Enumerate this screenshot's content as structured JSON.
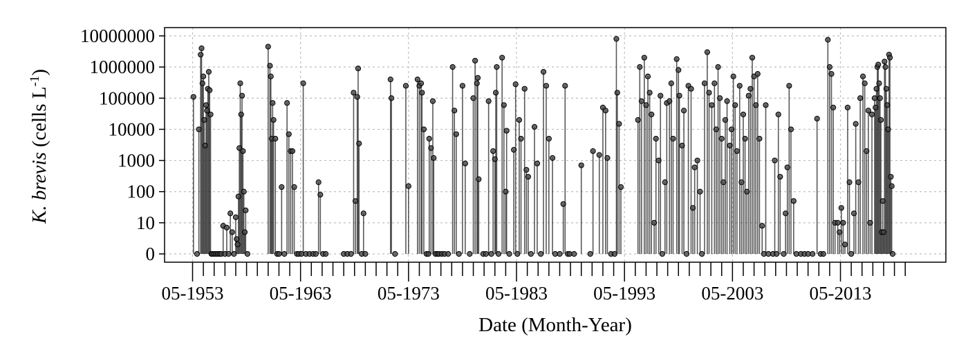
{
  "chart_data": {
    "type": "scatter",
    "style": "lollipop stems from baseline",
    "xlabel": "Date (Month-Year)",
    "ylabel": {
      "species": "K. brevis",
      "unit_prefix": " (cells L",
      "unit_exp": "-1",
      "unit_suffix": ")"
    },
    "x_ticks": [
      "05-1953",
      "05-1963",
      "05-1973",
      "05-1983",
      "05-1993",
      "05-2003",
      "05-2013"
    ],
    "y_ticks": [
      "0",
      "10",
      "100",
      "1000",
      "10000",
      "100000",
      "1000000",
      "10000000"
    ],
    "y_scale": "log10 with 0 plotted one decade below 10",
    "ylim": [
      0,
      10000000
    ],
    "xlim": [
      "1953-01",
      "2020-06"
    ],
    "grid": true,
    "colors": {
      "points": "#444444",
      "stems": "#222222",
      "grid": "#bdbdbd"
    },
    "points": [
      [
        "1953-06",
        110000
      ],
      [
        "1953-10",
        0
      ],
      [
        "1953-12",
        10000
      ],
      [
        "1954-02",
        2500000
      ],
      [
        "1954-03",
        4000000
      ],
      [
        "1954-04",
        300000
      ],
      [
        "1954-05",
        500000
      ],
      [
        "1954-06",
        20000
      ],
      [
        "1954-07",
        3000
      ],
      [
        "1954-08",
        60000
      ],
      [
        "1954-09",
        40000
      ],
      [
        "1954-10",
        200000
      ],
      [
        "1954-11",
        700000
      ],
      [
        "1954-12",
        180000
      ],
      [
        "1955-01",
        30000
      ],
      [
        "1955-02",
        0
      ],
      [
        "1955-03",
        0
      ],
      [
        "1955-05",
        0
      ],
      [
        "1955-07",
        0
      ],
      [
        "1955-09",
        0
      ],
      [
        "1955-11",
        0
      ],
      [
        "1956-01",
        0
      ],
      [
        "1956-03",
        8
      ],
      [
        "1956-05",
        0
      ],
      [
        "1956-07",
        7
      ],
      [
        "1956-09",
        0
      ],
      [
        "1956-11",
        20
      ],
      [
        "1957-01",
        5
      ],
      [
        "1957-03",
        0
      ],
      [
        "1957-05",
        15
      ],
      [
        "1957-06",
        3
      ],
      [
        "1957-07",
        2
      ],
      [
        "1957-08",
        70
      ],
      [
        "1957-09",
        2500
      ],
      [
        "1957-10",
        300000
      ],
      [
        "1957-11",
        30000
      ],
      [
        "1957-12",
        120000
      ],
      [
        "1958-01",
        2000
      ],
      [
        "1958-02",
        100
      ],
      [
        "1958-03",
        5
      ],
      [
        "1958-04",
        25
      ],
      [
        "1958-06",
        0
      ],
      [
        "1960-05",
        4500000
      ],
      [
        "1960-07",
        1100000
      ],
      [
        "1960-08",
        500000
      ],
      [
        "1960-09",
        5000
      ],
      [
        "1960-10",
        70000
      ],
      [
        "1960-11",
        20000
      ],
      [
        "1961-01",
        5000
      ],
      [
        "1961-03",
        0
      ],
      [
        "1961-05",
        0
      ],
      [
        "1961-08",
        140
      ],
      [
        "1961-11",
        0
      ],
      [
        "1962-02",
        70000
      ],
      [
        "1962-04",
        7000
      ],
      [
        "1962-06",
        2000
      ],
      [
        "1962-08",
        2000
      ],
      [
        "1962-10",
        140
      ],
      [
        "1963-01",
        0
      ],
      [
        "1963-03",
        0
      ],
      [
        "1963-06",
        0
      ],
      [
        "1963-08",
        300000
      ],
      [
        "1963-11",
        0
      ],
      [
        "1964-03",
        0
      ],
      [
        "1964-07",
        0
      ],
      [
        "1964-10",
        0
      ],
      [
        "1965-01",
        200
      ],
      [
        "1965-03",
        80
      ],
      [
        "1965-06",
        0
      ],
      [
        "1965-09",
        0
      ],
      [
        "1967-05",
        0
      ],
      [
        "1967-09",
        0
      ],
      [
        "1968-01",
        0
      ],
      [
        "1968-04",
        150000
      ],
      [
        "1968-06",
        50
      ],
      [
        "1968-08",
        110000
      ],
      [
        "1968-09",
        900000
      ],
      [
        "1968-10",
        3500
      ],
      [
        "1969-01",
        0
      ],
      [
        "1969-03",
        20
      ],
      [
        "1969-05",
        0
      ],
      [
        "1971-09",
        400000
      ],
      [
        "1971-10",
        100000
      ],
      [
        "1972-02",
        0
      ],
      [
        "1973-02",
        250000
      ],
      [
        "1973-05",
        150
      ],
      [
        "1974-03",
        400000
      ],
      [
        "1974-05",
        250000
      ],
      [
        "1974-07",
        300000
      ],
      [
        "1974-08",
        150000
      ],
      [
        "1974-10",
        10000
      ],
      [
        "1975-01",
        0
      ],
      [
        "1975-03",
        0
      ],
      [
        "1975-04",
        5000
      ],
      [
        "1975-06",
        2500
      ],
      [
        "1975-08",
        80000
      ],
      [
        "1975-09",
        1200
      ],
      [
        "1975-11",
        0
      ],
      [
        "1976-01",
        0
      ],
      [
        "1976-03",
        0
      ],
      [
        "1976-06",
        0
      ],
      [
        "1976-09",
        0
      ],
      [
        "1977-01",
        0
      ],
      [
        "1977-06",
        1000000
      ],
      [
        "1977-08",
        40000
      ],
      [
        "1977-10",
        7000
      ],
      [
        "1978-01",
        0
      ],
      [
        "1978-05",
        250000
      ],
      [
        "1978-08",
        800
      ],
      [
        "1979-01",
        0
      ],
      [
        "1979-05",
        100000
      ],
      [
        "1979-07",
        1600000
      ],
      [
        "1979-09",
        300000
      ],
      [
        "1979-10",
        450000
      ],
      [
        "1979-11",
        250
      ],
      [
        "1980-04",
        0
      ],
      [
        "1980-07",
        0
      ],
      [
        "1980-10",
        80000
      ],
      [
        "1981-01",
        0
      ],
      [
        "1981-03",
        2000
      ],
      [
        "1981-05",
        1100
      ],
      [
        "1981-06",
        150000
      ],
      [
        "1981-07",
        1000000
      ],
      [
        "1981-09",
        0
      ],
      [
        "1982-01",
        2000000
      ],
      [
        "1982-03",
        60000
      ],
      [
        "1982-05",
        100
      ],
      [
        "1982-06",
        9000
      ],
      [
        "1982-09",
        0
      ],
      [
        "1983-02",
        2200
      ],
      [
        "1983-04",
        280000
      ],
      [
        "1983-06",
        0
      ],
      [
        "1983-08",
        20000
      ],
      [
        "1983-10",
        5000
      ],
      [
        "1984-02",
        200000
      ],
      [
        "1984-04",
        500
      ],
      [
        "1984-06",
        300
      ],
      [
        "1984-09",
        0
      ],
      [
        "1985-01",
        12000
      ],
      [
        "1985-04",
        800
      ],
      [
        "1985-08",
        0
      ],
      [
        "1985-11",
        700000
      ],
      [
        "1986-02",
        250000
      ],
      [
        "1986-05",
        5000
      ],
      [
        "1986-09",
        1200
      ],
      [
        "1986-12",
        0
      ],
      [
        "1987-05",
        0
      ],
      [
        "1987-09",
        40
      ],
      [
        "1987-11",
        250000
      ],
      [
        "1988-02",
        0
      ],
      [
        "1988-04",
        0
      ],
      [
        "1988-09",
        0
      ],
      [
        "1989-05",
        700
      ],
      [
        "1990-03",
        0
      ],
      [
        "1990-06",
        2000
      ],
      [
        "1991-01",
        1500
      ],
      [
        "1991-05",
        50000
      ],
      [
        "1991-08",
        40000
      ],
      [
        "1991-10",
        1200
      ],
      [
        "1992-02",
        0
      ],
      [
        "1992-06",
        0
      ],
      [
        "1992-08",
        8000000
      ],
      [
        "1992-09",
        150000
      ],
      [
        "1992-11",
        15000
      ],
      [
        "1993-01",
        140
      ],
      [
        "1994-08",
        20000
      ],
      [
        "1994-10",
        1000000
      ],
      [
        "1994-12",
        80000
      ],
      [
        "1995-03",
        2000000
      ],
      [
        "1995-05",
        60000
      ],
      [
        "1995-07",
        500000
      ],
      [
        "1995-09",
        150000
      ],
      [
        "1995-11",
        30000
      ],
      [
        "1996-02",
        10
      ],
      [
        "1996-04",
        5000
      ],
      [
        "1996-07",
        1000
      ],
      [
        "1996-09",
        120000
      ],
      [
        "1996-11",
        0
      ],
      [
        "1997-02",
        200
      ],
      [
        "1997-04",
        70000
      ],
      [
        "1997-07",
        80000
      ],
      [
        "1997-09",
        300000
      ],
      [
        "1997-11",
        5000
      ],
      [
        "1998-03",
        1800000
      ],
      [
        "1998-05",
        800000
      ],
      [
        "1998-06",
        120000
      ],
      [
        "1998-09",
        3000
      ],
      [
        "1998-11",
        40000
      ],
      [
        "1999-02",
        0
      ],
      [
        "1999-04",
        250000
      ],
      [
        "1999-07",
        200000
      ],
      [
        "1999-09",
        30
      ],
      [
        "1999-11",
        600
      ],
      [
        "2000-02",
        1000
      ],
      [
        "2000-05",
        100
      ],
      [
        "2000-07",
        0
      ],
      [
        "2000-10",
        300000
      ],
      [
        "2001-01",
        3000000
      ],
      [
        "2001-03",
        150000
      ],
      [
        "2001-06",
        60000
      ],
      [
        "2001-09",
        300000
      ],
      [
        "2001-11",
        10000
      ],
      [
        "2002-01",
        1000000
      ],
      [
        "2002-03",
        100000
      ],
      [
        "2002-05",
        5000
      ],
      [
        "2002-07",
        200
      ],
      [
        "2002-09",
        20000
      ],
      [
        "2002-11",
        80000
      ],
      [
        "2003-02",
        3000
      ],
      [
        "2003-04",
        10000
      ],
      [
        "2003-06",
        500000
      ],
      [
        "2003-08",
        60000
      ],
      [
        "2003-10",
        2000
      ],
      [
        "2004-01",
        250000
      ],
      [
        "2004-03",
        200
      ],
      [
        "2004-05",
        30000
      ],
      [
        "2004-07",
        5000
      ],
      [
        "2004-09",
        100
      ],
      [
        "2004-11",
        120000
      ],
      [
        "2005-01",
        200000
      ],
      [
        "2005-03",
        2000000
      ],
      [
        "2005-05",
        500000
      ],
      [
        "2005-07",
        60000
      ],
      [
        "2005-09",
        600000
      ],
      [
        "2005-11",
        5000
      ],
      [
        "2006-02",
        8
      ],
      [
        "2006-04",
        0
      ],
      [
        "2006-06",
        60000
      ],
      [
        "2006-09",
        0
      ],
      [
        "2007-02",
        0
      ],
      [
        "2007-04",
        1000
      ],
      [
        "2007-06",
        0
      ],
      [
        "2007-08",
        30000
      ],
      [
        "2007-10",
        300
      ],
      [
        "2008-02",
        0
      ],
      [
        "2008-04",
        20
      ],
      [
        "2008-06",
        600
      ],
      [
        "2008-08",
        250000
      ],
      [
        "2008-10",
        10000
      ],
      [
        "2009-01",
        50
      ],
      [
        "2009-04",
        0
      ],
      [
        "2009-09",
        0
      ],
      [
        "2010-01",
        0
      ],
      [
        "2010-05",
        0
      ],
      [
        "2010-10",
        0
      ],
      [
        "2011-03",
        22000
      ],
      [
        "2011-07",
        0
      ],
      [
        "2011-10",
        0
      ],
      [
        "2012-03",
        7500000
      ],
      [
        "2012-05",
        1000000
      ],
      [
        "2012-07",
        600000
      ],
      [
        "2012-09",
        50000
      ],
      [
        "2012-11",
        10
      ],
      [
        "2013-02",
        10
      ],
      [
        "2013-04",
        5
      ],
      [
        "2013-06",
        30
      ],
      [
        "2013-08",
        10
      ],
      [
        "2013-10",
        2
      ],
      [
        "2014-01",
        50000
      ],
      [
        "2014-03",
        200
      ],
      [
        "2014-05",
        0
      ],
      [
        "2014-08",
        20
      ],
      [
        "2014-10",
        15000
      ],
      [
        "2015-01",
        200
      ],
      [
        "2015-03",
        100000
      ],
      [
        "2015-06",
        500000
      ],
      [
        "2015-08",
        300000
      ],
      [
        "2015-10",
        2000
      ],
      [
        "2015-12",
        40000
      ],
      [
        "2016-02",
        10
      ],
      [
        "2016-04",
        30000
      ],
      [
        "2016-07",
        100000
      ],
      [
        "2016-08",
        50000
      ],
      [
        "2016-09",
        200000
      ],
      [
        "2016-10",
        1000000
      ],
      [
        "2016-11",
        1200000
      ],
      [
        "2016-12",
        300000
      ],
      [
        "2017-01",
        100000
      ],
      [
        "2017-02",
        20000
      ],
      [
        "2017-03",
        5
      ],
      [
        "2017-04",
        50
      ],
      [
        "2017-05",
        5
      ],
      [
        "2017-06",
        1500000
      ],
      [
        "2017-07",
        1000000
      ],
      [
        "2017-08",
        200000
      ],
      [
        "2017-09",
        60000
      ],
      [
        "2017-10",
        10000
      ],
      [
        "2017-11",
        2500000
      ],
      [
        "2017-12",
        2000000
      ],
      [
        "2018-01",
        300
      ],
      [
        "2018-02",
        150
      ],
      [
        "2018-03",
        0
      ]
    ]
  }
}
